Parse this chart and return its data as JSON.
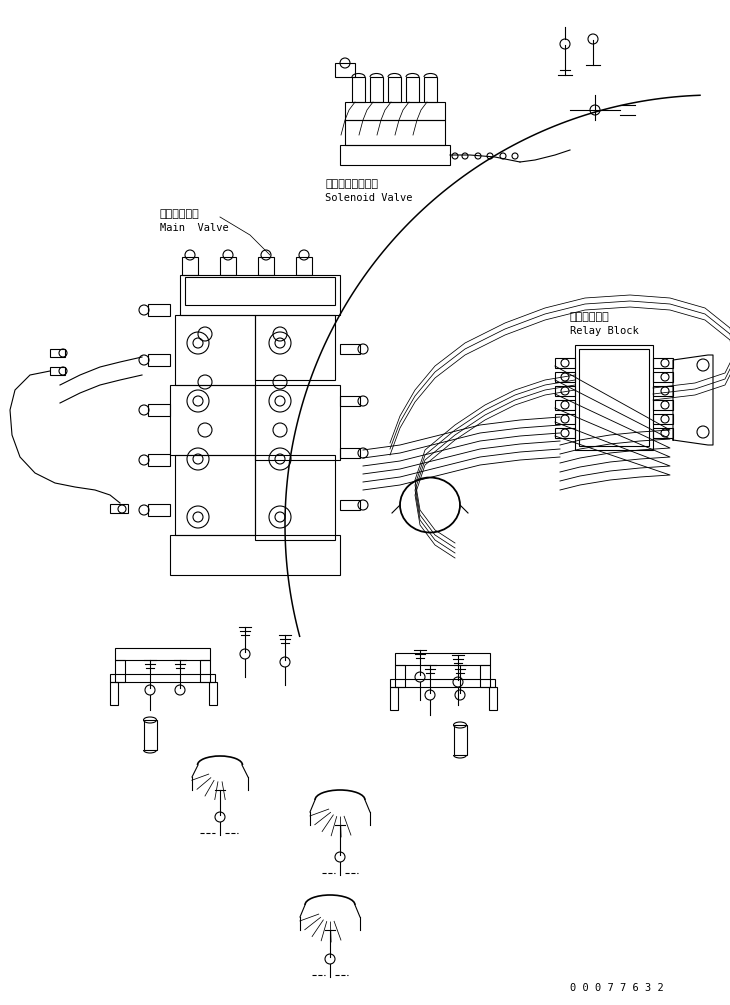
{
  "background_color": "#ffffff",
  "line_color": "#000000",
  "line_width": 0.8,
  "labels": {
    "solenoid_valve_jp": "ソレノイドバルブ",
    "solenoid_valve_en": "Solenoid Valve",
    "main_valve_jp": "メインバルブ",
    "main_valve_en": "Main  Valve",
    "relay_block_jp": "中継ブロック",
    "relay_block_en": "Relay Block"
  },
  "watermark": "0 0 0 7 7 6 3 2",
  "fig_width": 7.3,
  "fig_height": 10.05,
  "dpi": 100
}
